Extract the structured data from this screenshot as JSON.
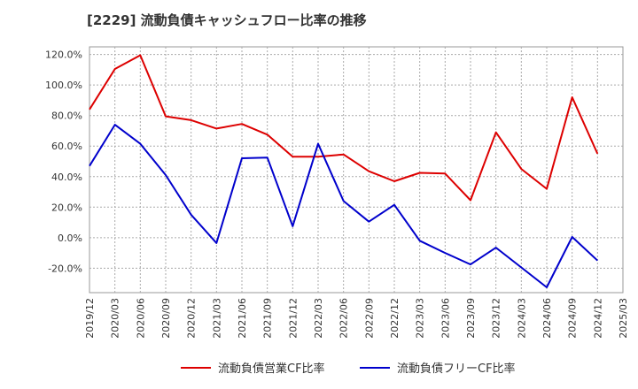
{
  "chart_data": {
    "type": "line",
    "title": "[2229]  流動負債キャッシュフロー比率の推移",
    "xlabel": "",
    "ylabel": "",
    "ylim": [
      -36,
      125
    ],
    "yticks": [
      -20,
      0,
      20,
      40,
      60,
      80,
      100,
      120
    ],
    "ytick_labels": [
      "-20.0%",
      "0.0%",
      "20.0%",
      "40.0%",
      "60.0%",
      "80.0%",
      "100.0%",
      "120.0%"
    ],
    "x": [
      "2019/12",
      "2020/03",
      "2020/06",
      "2020/09",
      "2020/12",
      "2021/03",
      "2021/06",
      "2021/09",
      "2021/12",
      "2022/03",
      "2022/06",
      "2022/09",
      "2022/12",
      "2023/03",
      "2023/06",
      "2023/09",
      "2023/12",
      "2024/03",
      "2024/06",
      "2024/09",
      "2024/12",
      "2025/03"
    ],
    "grid": true,
    "legend": "bottom",
    "series": [
      {
        "name": "流動負債営業CF比率",
        "color": "#dd0000",
        "values": [
          84.0,
          110.5,
          119.5,
          79.5,
          77.0,
          71.5,
          74.5,
          67.5,
          53.0,
          53.0,
          54.5,
          43.5,
          37.0,
          42.5,
          42.0,
          24.5,
          69.0,
          45.0,
          32.0,
          92.0,
          55.0,
          null
        ]
      },
      {
        "name": "流動負債フリーCF比率",
        "color": "#0000cc",
        "values": [
          47.0,
          74.0,
          61.5,
          41.0,
          15.0,
          -3.5,
          52.0,
          52.5,
          7.5,
          61.5,
          24.0,
          10.5,
          21.5,
          -2.0,
          -10.0,
          -17.5,
          -6.5,
          -19.5,
          -32.5,
          0.5,
          -15.0,
          null
        ]
      }
    ]
  }
}
